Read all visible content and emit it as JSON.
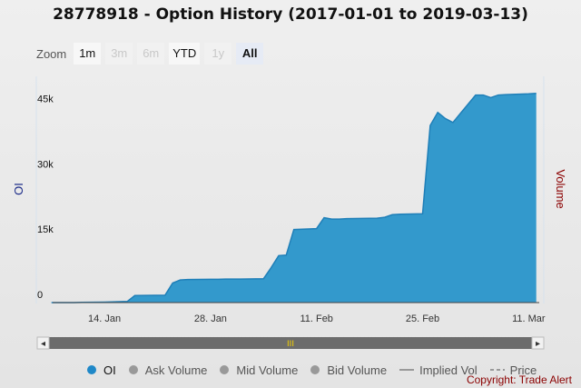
{
  "title": "28778918 - Option History (2017-01-01 to 2019-03-13)",
  "zoom": {
    "label": "Zoom",
    "buttons": [
      {
        "label": "1m",
        "state": "normal"
      },
      {
        "label": "3m",
        "state": "disabled"
      },
      {
        "label": "6m",
        "state": "disabled"
      },
      {
        "label": "YTD",
        "state": "normal"
      },
      {
        "label": "1y",
        "state": "disabled"
      },
      {
        "label": "All",
        "state": "active"
      }
    ]
  },
  "chart_data": {
    "type": "area",
    "ylabel_left": "OI",
    "ylabel_right": "Volume",
    "ylim": [
      0,
      52000
    ],
    "yticks": [
      {
        "value": 0,
        "label": "0"
      },
      {
        "value": 15000,
        "label": "15k"
      },
      {
        "value": 30000,
        "label": "30k"
      },
      {
        "value": 45000,
        "label": "45k"
      }
    ],
    "xlim": [
      "2019-01-05",
      "2019-03-13"
    ],
    "xticks": [
      {
        "date": "2019-01-14",
        "label": "14. Jan"
      },
      {
        "date": "2019-01-28",
        "label": "28. Jan"
      },
      {
        "date": "2019-02-11",
        "label": "11. Feb"
      },
      {
        "date": "2019-02-25",
        "label": "25. Feb"
      },
      {
        "date": "2019-03-11",
        "label": "11. Mar"
      }
    ],
    "series": [
      {
        "name": "OI",
        "color": "#3399cc",
        "line_color": "#1f7fb8",
        "points": [
          [
            "2019-01-07",
            0
          ],
          [
            "2019-01-08",
            0
          ],
          [
            "2019-01-09",
            0
          ],
          [
            "2019-01-10",
            0
          ],
          [
            "2019-01-11",
            50
          ],
          [
            "2019-01-14",
            100
          ],
          [
            "2019-01-15",
            150
          ],
          [
            "2019-01-16",
            200
          ],
          [
            "2019-01-17",
            250
          ],
          [
            "2019-01-18",
            1600
          ],
          [
            "2019-01-22",
            1700
          ],
          [
            "2019-01-23",
            4500
          ],
          [
            "2019-01-24",
            5200
          ],
          [
            "2019-01-25",
            5300
          ],
          [
            "2019-01-28",
            5350
          ],
          [
            "2019-01-29",
            5350
          ],
          [
            "2019-01-30",
            5400
          ],
          [
            "2019-01-31",
            5400
          ],
          [
            "2019-02-01",
            5400
          ],
          [
            "2019-02-04",
            5500
          ],
          [
            "2019-02-05",
            8000
          ],
          [
            "2019-02-06",
            10800
          ],
          [
            "2019-02-07",
            10900
          ],
          [
            "2019-02-08",
            16800
          ],
          [
            "2019-02-11",
            17000
          ],
          [
            "2019-02-12",
            19500
          ],
          [
            "2019-02-13",
            19200
          ],
          [
            "2019-02-14",
            19200
          ],
          [
            "2019-02-15",
            19300
          ],
          [
            "2019-02-19",
            19400
          ],
          [
            "2019-02-20",
            19600
          ],
          [
            "2019-02-21",
            20200
          ],
          [
            "2019-02-22",
            20300
          ],
          [
            "2019-02-25",
            20400
          ],
          [
            "2019-02-26",
            40700
          ],
          [
            "2019-02-27",
            43700
          ],
          [
            "2019-02-28",
            42300
          ],
          [
            "2019-03-01",
            41400
          ],
          [
            "2019-03-04",
            47700
          ],
          [
            "2019-03-05",
            47700
          ],
          [
            "2019-03-06",
            47100
          ],
          [
            "2019-03-07",
            47700
          ],
          [
            "2019-03-08",
            47800
          ],
          [
            "2019-03-11",
            48000
          ],
          [
            "2019-03-12",
            48100
          ]
        ]
      }
    ]
  },
  "navigator": {
    "left_arrow": "◂",
    "right_arrow": "▸",
    "handle_grip": "III"
  },
  "legend": [
    {
      "label": "OI",
      "color": "#1f88c8",
      "marker": "dot",
      "active": true
    },
    {
      "label": "Ask Volume",
      "color": "#999999",
      "marker": "dot",
      "active": false
    },
    {
      "label": "Mid Volume",
      "color": "#999999",
      "marker": "dot",
      "active": false
    },
    {
      "label": "Bid Volume",
      "color": "#999999",
      "marker": "dot",
      "active": false
    },
    {
      "label": "Implied Vol",
      "color": "#999999",
      "marker": "line",
      "active": false
    },
    {
      "label": "Price",
      "color": "#999999",
      "marker": "dash",
      "active": false
    }
  ],
  "copyright": "Copyright: Trade Alert"
}
